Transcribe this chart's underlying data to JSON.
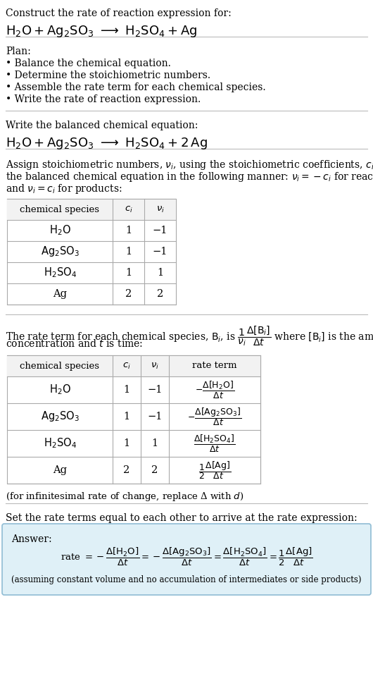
{
  "bg_color": "#ffffff",
  "text_color": "#000000",
  "font_family": "DejaVu Serif",
  "title_line1": "Construct the rate of reaction expression for:",
  "plan_title": "Plan:",
  "plan_items": [
    "• Balance the chemical equation.",
    "• Determine the stoichiometric numbers.",
    "• Assemble the rate term for each chemical species.",
    "• Write the rate of reaction expression."
  ],
  "balanced_label": "Write the balanced chemical equation:",
  "stoich_label_parts": [
    "Assign stoichiometric numbers, $\\nu_i$, using the stoichiometric coefficients, $c_i$, from",
    "the balanced chemical equation in the following manner: $\\nu_i = -c_i$ for reactants",
    "and $\\nu_i = c_i$ for products:"
  ],
  "table1_headers": [
    "chemical species",
    "$c_i$",
    "$\\nu_i$"
  ],
  "table1_rows": [
    [
      "$\\mathrm{H_2O}$",
      "1",
      "−1"
    ],
    [
      "$\\mathrm{Ag_2SO_3}$",
      "1",
      "−1"
    ],
    [
      "$\\mathrm{H_2SO_4}$",
      "1",
      "1"
    ],
    [
      "Ag",
      "2",
      "2"
    ]
  ],
  "rate_label_parts": [
    "The rate term for each chemical species, $\\mathrm{B}_i$, is $\\dfrac{1}{\\nu_i}\\dfrac{\\Delta[\\mathrm{B}_i]}{\\Delta t}$ where $[\\mathrm{B}_i]$ is the amount",
    "concentration and $t$ is time:"
  ],
  "table2_headers": [
    "chemical species",
    "$c_i$",
    "$\\nu_i$",
    "rate term"
  ],
  "table2_rows": [
    [
      "$\\mathrm{H_2O}$",
      "1",
      "−1",
      "$-\\dfrac{\\Delta[\\mathrm{H_2O}]}{\\Delta t}$"
    ],
    [
      "$\\mathrm{Ag_2SO_3}$",
      "1",
      "−1",
      "$-\\dfrac{\\Delta[\\mathrm{Ag_2SO_3}]}{\\Delta t}$"
    ],
    [
      "$\\mathrm{H_2SO_4}$",
      "1",
      "1",
      "$\\dfrac{\\Delta[\\mathrm{H_2SO_4}]}{\\Delta t}$"
    ],
    [
      "Ag",
      "2",
      "2",
      "$\\dfrac{1}{2}\\dfrac{\\Delta[\\mathrm{Ag}]}{\\Delta t}$"
    ]
  ],
  "infinitesimal_note": "(for infinitesimal rate of change, replace Δ with $d$)",
  "set_label": "Set the rate terms equal to each other to arrive at the rate expression:",
  "answer_label": "Answer:",
  "answer_box_color": "#dff0f7",
  "answer_box_border": "#90bcd4",
  "rate_expression_parts": [
    "rate $= -\\dfrac{\\Delta[\\mathrm{H_2O}]}{\\Delta t} = -\\dfrac{\\Delta[\\mathrm{Ag_2SO_3}]}{\\Delta t} = \\dfrac{\\Delta[\\mathrm{H_2SO_4}]}{\\Delta t} = \\dfrac{1}{2}\\dfrac{\\Delta[\\mathrm{Ag}]}{\\Delta t}$"
  ],
  "assuming_note": "(assuming constant volume and no accumulation of intermediates or side products)"
}
